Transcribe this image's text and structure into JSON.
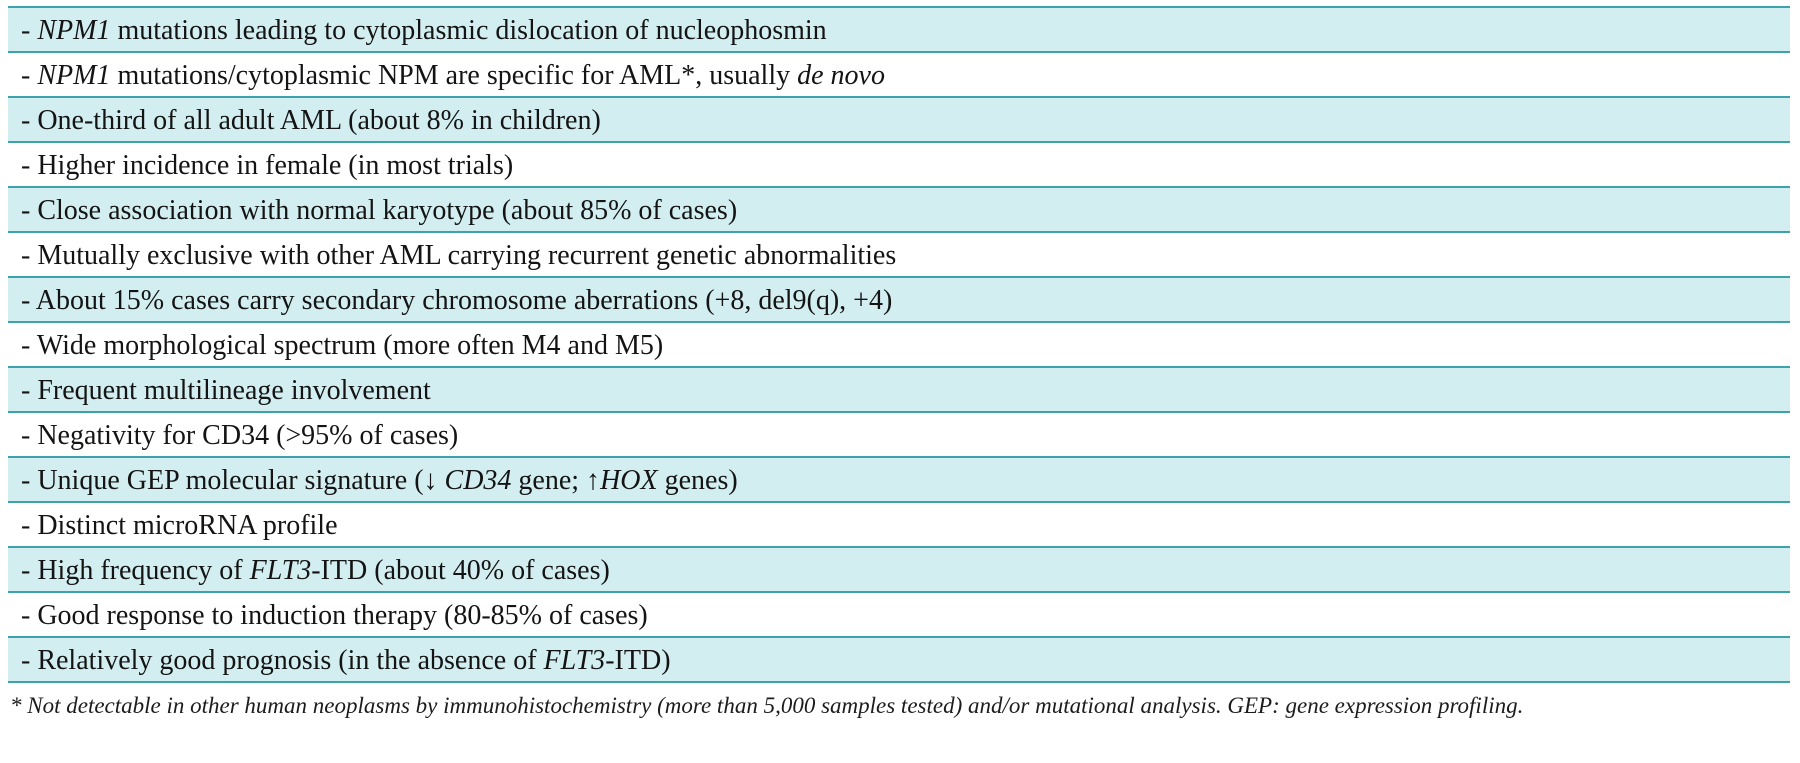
{
  "colors": {
    "row_highlight": "#d3eef1",
    "row_plain": "#ffffff",
    "border": "#3da2ab",
    "text": "#141414"
  },
  "table": {
    "rows": [
      {
        "shaded": true,
        "segments": [
          {
            "t": "- "
          },
          {
            "t": "NPM1",
            "i": true
          },
          {
            "t": " mutations leading to cytoplasmic dislocation of nucleophosmin"
          }
        ]
      },
      {
        "shaded": false,
        "segments": [
          {
            "t": "- "
          },
          {
            "t": "NPM1",
            "i": true
          },
          {
            "t": " mutations/cytoplasmic NPM are specific for AML*, usually "
          },
          {
            "t": "de novo",
            "i": true
          }
        ]
      },
      {
        "shaded": true,
        "segments": [
          {
            "t": "- One-third of all adult AML (about 8% in children)"
          }
        ]
      },
      {
        "shaded": false,
        "segments": [
          {
            "t": "- Higher incidence in female (in most trials)"
          }
        ]
      },
      {
        "shaded": true,
        "segments": [
          {
            "t": "- Close association with normal karyotype (about 85% of cases)"
          }
        ]
      },
      {
        "shaded": false,
        "segments": [
          {
            "t": "- Mutually exclusive with other AML carrying recurrent genetic abnormalities"
          }
        ]
      },
      {
        "shaded": true,
        "segments": [
          {
            "t": "- About 15% cases carry secondary chromosome aberrations (+8, del9(q), +4)"
          }
        ]
      },
      {
        "shaded": false,
        "segments": [
          {
            "t": "- Wide morphological spectrum (more often M4 and M5)"
          }
        ]
      },
      {
        "shaded": true,
        "segments": [
          {
            "t": "- Frequent multilineage involvement"
          }
        ]
      },
      {
        "shaded": false,
        "segments": [
          {
            "t": "- Negativity for CD34 (>95% of cases)"
          }
        ]
      },
      {
        "shaded": true,
        "segments": [
          {
            "t": "- Unique GEP molecular signature (↓ "
          },
          {
            "t": "CD34",
            "i": true
          },
          {
            "t": " gene; ↑"
          },
          {
            "t": "HOX",
            "i": true
          },
          {
            "t": " genes)"
          }
        ]
      },
      {
        "shaded": false,
        "segments": [
          {
            "t": "- Distinct microRNA profile"
          }
        ]
      },
      {
        "shaded": true,
        "segments": [
          {
            "t": "- High frequency of "
          },
          {
            "t": "FLT3",
            "i": true
          },
          {
            "t": "-ITD (about 40% of cases)"
          }
        ]
      },
      {
        "shaded": false,
        "segments": [
          {
            "t": "- Good response to induction therapy (80-85% of cases)"
          }
        ]
      },
      {
        "shaded": true,
        "segments": [
          {
            "t": "- Relatively good prognosis (in the absence of "
          },
          {
            "t": "FLT3",
            "i": true
          },
          {
            "t": "-ITD)"
          }
        ]
      }
    ]
  },
  "footnote": {
    "text": "* Not detectable in other human neoplasms by immunohistochemistry (more than 5,000 samples tested) and/or mutational analysis. GEP: gene expression profiling."
  }
}
